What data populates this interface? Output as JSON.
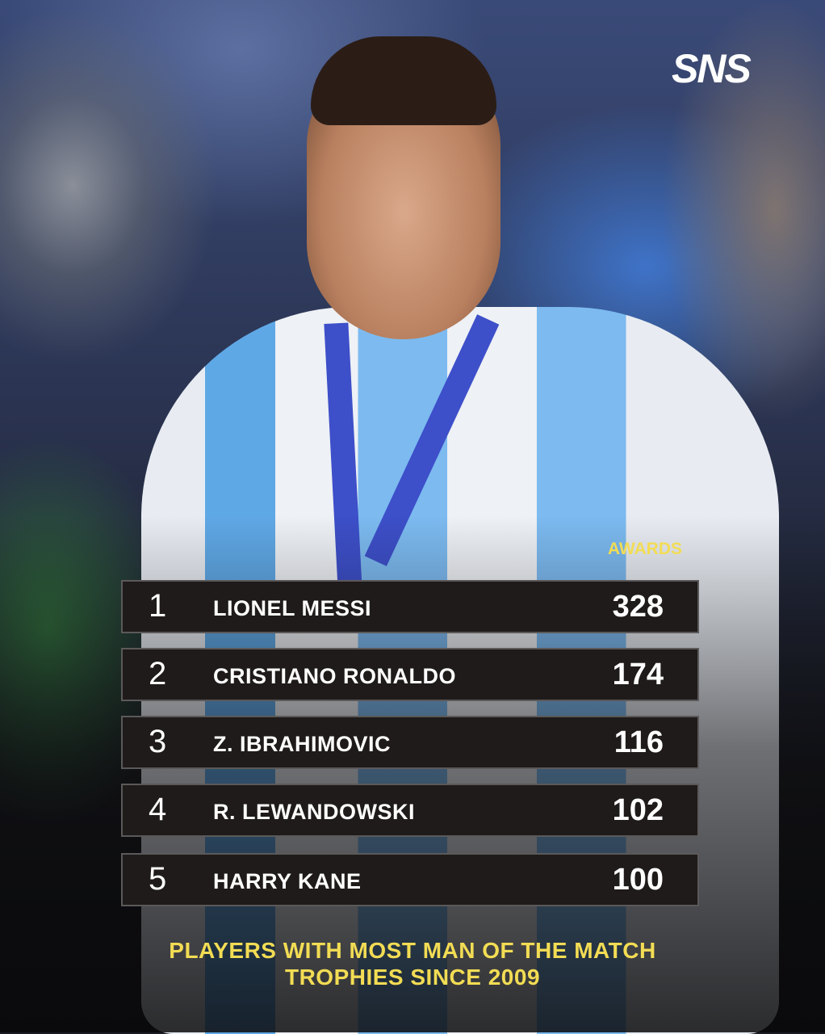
{
  "brand": {
    "logo": "SNS"
  },
  "table": {
    "column_header": "AWARDS",
    "rows": [
      {
        "rank": "1",
        "name": "LIONEL MESSI",
        "value": "328"
      },
      {
        "rank": "2",
        "name": "CRISTIANO RONALDO",
        "value": "174"
      },
      {
        "rank": "3",
        "name": "Z. IBRAHIMOVIC",
        "value": "116"
      },
      {
        "rank": "4",
        "name": "R. LEWANDOWSKI",
        "value": "102"
      },
      {
        "rank": "5",
        "name": "HARRY KANE",
        "value": "100"
      }
    ]
  },
  "caption": {
    "line1": "PLAYERS WITH MOST MAN OF THE MATCH",
    "line2": "TROPHIES SINCE 2009"
  },
  "colors": {
    "accent": "#f2dc54",
    "row_bg": "#1f1b1a",
    "row_border": "#5b5959"
  }
}
